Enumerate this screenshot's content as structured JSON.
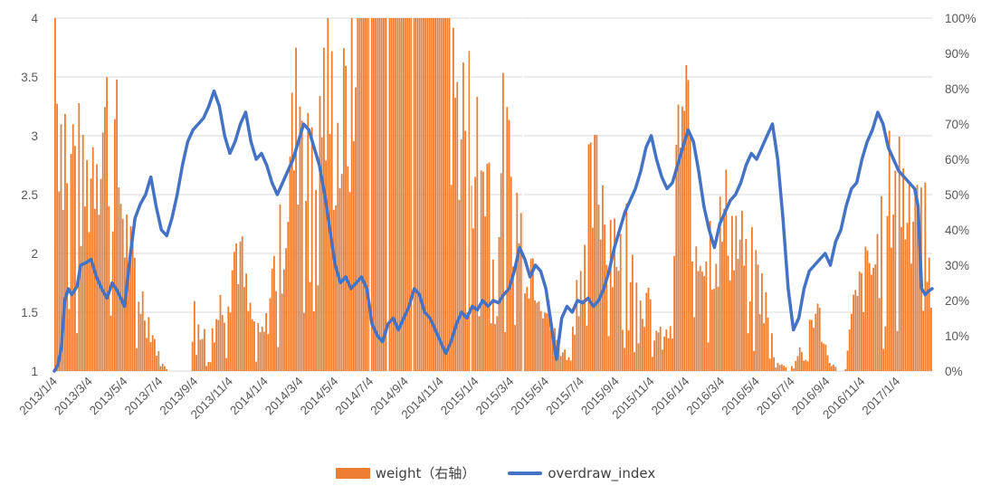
{
  "chart_data": {
    "type": "bar+line",
    "title": "",
    "colors": {
      "weight": "#ed7d31",
      "overdraw": "#4472c4",
      "grid": "#d9d9d9",
      "text": "#595959"
    },
    "left_axis": {
      "ylim": [
        1,
        4
      ],
      "ticks": [
        "1",
        "1.5",
        "2",
        "2.5",
        "3",
        "3.5",
        "4"
      ]
    },
    "right_axis": {
      "ylim": [
        0,
        100
      ],
      "ticks": [
        "0%",
        "10%",
        "20%",
        "30%",
        "40%",
        "50%",
        "60%",
        "70%",
        "80%",
        "90%",
        "100%"
      ]
    },
    "x_labels": [
      "2013/1/4",
      "2013/3/4",
      "2013/5/4",
      "2013/7/4",
      "2013/9/4",
      "2013/11/4",
      "2014/1/4",
      "2014/3/4",
      "2014/5/4",
      "2014/7/4",
      "2014/9/4",
      "2014/11/4",
      "2015/1/4",
      "2015/3/4",
      "2015/5/4",
      "2015/7/4",
      "2015/9/4",
      "2015/11/4",
      "2016/1/4",
      "2016/3/4",
      "2016/5/4",
      "2016/7/4",
      "2016/9/4",
      "2016/11/4",
      "2017/1/4"
    ],
    "x_range_months": [
      0,
      50
    ],
    "legend": {
      "weight": "weight（右轴）",
      "overdraw": "overdraw_index"
    },
    "weight_envelope_pct": [
      [
        0.0,
        100
      ],
      [
        0.3,
        96
      ],
      [
        0.8,
        80
      ],
      [
        1.2,
        78
      ],
      [
        1.6,
        62
      ],
      [
        2.0,
        72
      ],
      [
        2.3,
        85
      ],
      [
        2.6,
        90
      ],
      [
        3.0,
        88
      ],
      [
        3.5,
        78
      ],
      [
        4.0,
        50
      ],
      [
        4.5,
        35
      ],
      [
        5.0,
        25
      ],
      [
        5.5,
        15
      ],
      [
        6.0,
        3
      ],
      [
        6.5,
        0
      ],
      [
        7.0,
        0
      ],
      [
        7.7,
        0
      ],
      [
        8.0,
        25
      ],
      [
        8.6,
        10
      ],
      [
        9.2,
        20
      ],
      [
        9.8,
        30
      ],
      [
        10.4,
        48
      ],
      [
        11.0,
        22
      ],
      [
        11.6,
        12
      ],
      [
        12.0,
        15
      ],
      [
        12.4,
        35
      ],
      [
        13.0,
        48
      ],
      [
        13.5,
        80
      ],
      [
        14.0,
        100
      ],
      [
        14.8,
        96
      ],
      [
        15.5,
        100
      ],
      [
        16.2,
        82
      ],
      [
        16.8,
        95
      ],
      [
        17.2,
        100
      ],
      [
        19.5,
        100
      ],
      [
        19.9,
        100
      ],
      [
        21.0,
        100
      ],
      [
        22.5,
        100
      ],
      [
        23.0,
        96
      ],
      [
        23.5,
        90
      ],
      [
        24.0,
        80
      ],
      [
        24.5,
        72
      ],
      [
        25.0,
        70
      ],
      [
        25.6,
        80
      ],
      [
        26.0,
        66
      ],
      [
        26.6,
        52
      ],
      [
        27.0,
        42
      ],
      [
        27.5,
        38
      ],
      [
        28.0,
        22
      ],
      [
        28.6,
        10
      ],
      [
        29.2,
        5
      ],
      [
        29.8,
        32
      ],
      [
        30.4,
        60
      ],
      [
        31.0,
        68
      ],
      [
        31.6,
        55
      ],
      [
        32.2,
        45
      ],
      [
        32.8,
        55
      ],
      [
        33.4,
        30
      ],
      [
        34.0,
        18
      ],
      [
        34.6,
        10
      ],
      [
        35.0,
        14
      ],
      [
        35.6,
        94
      ],
      [
        36.0,
        88
      ],
      [
        36.6,
        40
      ],
      [
        37.0,
        50
      ],
      [
        37.6,
        45
      ],
      [
        38.2,
        55
      ],
      [
        38.8,
        48
      ],
      [
        39.4,
        40
      ],
      [
        40.0,
        35
      ],
      [
        40.6,
        20
      ],
      [
        41.0,
        5
      ],
      [
        41.8,
        0
      ],
      [
        42.6,
        10
      ],
      [
        43.2,
        22
      ],
      [
        43.6,
        18
      ],
      [
        44.0,
        5
      ],
      [
        44.6,
        0
      ],
      [
        45.0,
        0
      ],
      [
        45.4,
        20
      ],
      [
        46.0,
        32
      ],
      [
        46.6,
        38
      ],
      [
        47.2,
        48
      ],
      [
        47.6,
        68
      ],
      [
        48.0,
        72
      ],
      [
        48.5,
        60
      ],
      [
        49.0,
        70
      ],
      [
        49.4,
        68
      ],
      [
        49.7,
        50
      ],
      [
        50.0,
        0
      ]
    ],
    "overdraw_values": [
      [
        0.0,
        1.0
      ],
      [
        0.2,
        1.05
      ],
      [
        0.4,
        1.2
      ],
      [
        0.6,
        1.6
      ],
      [
        0.8,
        1.7
      ],
      [
        1.0,
        1.65
      ],
      [
        1.3,
        1.72
      ],
      [
        1.5,
        1.9
      ],
      [
        1.8,
        1.92
      ],
      [
        2.1,
        1.95
      ],
      [
        2.4,
        1.8
      ],
      [
        2.7,
        1.7
      ],
      [
        3.0,
        1.62
      ],
      [
        3.3,
        1.75
      ],
      [
        3.6,
        1.68
      ],
      [
        4.0,
        1.55
      ],
      [
        4.3,
        1.95
      ],
      [
        4.6,
        2.3
      ],
      [
        4.9,
        2.42
      ],
      [
        5.2,
        2.5
      ],
      [
        5.5,
        2.65
      ],
      [
        5.8,
        2.4
      ],
      [
        6.1,
        2.2
      ],
      [
        6.4,
        2.15
      ],
      [
        6.7,
        2.3
      ],
      [
        7.0,
        2.5
      ],
      [
        7.3,
        2.75
      ],
      [
        7.6,
        2.95
      ],
      [
        7.9,
        3.05
      ],
      [
        8.2,
        3.1
      ],
      [
        8.5,
        3.15
      ],
      [
        8.8,
        3.25
      ],
      [
        9.1,
        3.38
      ],
      [
        9.4,
        3.25
      ],
      [
        9.7,
        3.0
      ],
      [
        10.0,
        2.85
      ],
      [
        10.3,
        2.95
      ],
      [
        10.6,
        3.1
      ],
      [
        10.9,
        3.2
      ],
      [
        11.2,
        2.95
      ],
      [
        11.5,
        2.8
      ],
      [
        11.8,
        2.85
      ],
      [
        12.1,
        2.75
      ],
      [
        12.4,
        2.6
      ],
      [
        12.7,
        2.5
      ],
      [
        13.0,
        2.6
      ],
      [
        13.3,
        2.7
      ],
      [
        13.6,
        2.8
      ],
      [
        13.9,
        2.95
      ],
      [
        14.2,
        3.1
      ],
      [
        14.5,
        3.05
      ],
      [
        14.8,
        2.9
      ],
      [
        15.1,
        2.75
      ],
      [
        15.4,
        2.5
      ],
      [
        15.7,
        2.2
      ],
      [
        16.0,
        1.9
      ],
      [
        16.3,
        1.75
      ],
      [
        16.6,
        1.8
      ],
      [
        16.9,
        1.7
      ],
      [
        17.2,
        1.75
      ],
      [
        17.5,
        1.8
      ],
      [
        17.8,
        1.7
      ],
      [
        18.1,
        1.4
      ],
      [
        18.4,
        1.3
      ],
      [
        18.7,
        1.25
      ],
      [
        19.0,
        1.4
      ],
      [
        19.3,
        1.45
      ],
      [
        19.6,
        1.35
      ],
      [
        19.9,
        1.45
      ],
      [
        20.2,
        1.55
      ],
      [
        20.5,
        1.7
      ],
      [
        20.8,
        1.65
      ],
      [
        21.1,
        1.5
      ],
      [
        21.4,
        1.45
      ],
      [
        21.7,
        1.35
      ],
      [
        22.0,
        1.25
      ],
      [
        22.3,
        1.15
      ],
      [
        22.6,
        1.25
      ],
      [
        22.9,
        1.4
      ],
      [
        23.2,
        1.5
      ],
      [
        23.5,
        1.45
      ],
      [
        23.8,
        1.55
      ],
      [
        24.1,
        1.52
      ],
      [
        24.4,
        1.6
      ],
      [
        24.7,
        1.55
      ],
      [
        25.0,
        1.6
      ],
      [
        25.3,
        1.58
      ],
      [
        25.6,
        1.65
      ],
      [
        25.9,
        1.7
      ],
      [
        26.2,
        1.85
      ],
      [
        26.5,
        2.05
      ],
      [
        26.8,
        1.95
      ],
      [
        27.1,
        1.8
      ],
      [
        27.4,
        1.9
      ],
      [
        27.7,
        1.85
      ],
      [
        28.0,
        1.7
      ],
      [
        28.3,
        1.4
      ],
      [
        28.6,
        1.1
      ],
      [
        28.9,
        1.45
      ],
      [
        29.2,
        1.55
      ],
      [
        29.5,
        1.5
      ],
      [
        29.8,
        1.6
      ],
      [
        30.1,
        1.58
      ],
      [
        30.4,
        1.62
      ],
      [
        30.7,
        1.55
      ],
      [
        31.0,
        1.6
      ],
      [
        31.3,
        1.7
      ],
      [
        31.6,
        1.85
      ],
      [
        31.9,
        2.05
      ],
      [
        32.2,
        2.2
      ],
      [
        32.5,
        2.35
      ],
      [
        32.8,
        2.45
      ],
      [
        33.1,
        2.55
      ],
      [
        33.4,
        2.7
      ],
      [
        33.7,
        2.9
      ],
      [
        34.0,
        3.0
      ],
      [
        34.3,
        2.8
      ],
      [
        34.6,
        2.65
      ],
      [
        34.9,
        2.55
      ],
      [
        35.2,
        2.6
      ],
      [
        35.5,
        2.75
      ],
      [
        35.8,
        2.9
      ],
      [
        36.1,
        3.05
      ],
      [
        36.4,
        2.95
      ],
      [
        36.7,
        2.7
      ],
      [
        37.0,
        2.4
      ],
      [
        37.3,
        2.2
      ],
      [
        37.6,
        2.05
      ],
      [
        37.9,
        2.25
      ],
      [
        38.2,
        2.35
      ],
      [
        38.5,
        2.45
      ],
      [
        38.8,
        2.5
      ],
      [
        39.1,
        2.6
      ],
      [
        39.4,
        2.75
      ],
      [
        39.7,
        2.85
      ],
      [
        40.0,
        2.8
      ],
      [
        40.3,
        2.9
      ],
      [
        40.6,
        3.0
      ],
      [
        40.9,
        3.1
      ],
      [
        41.2,
        2.8
      ],
      [
        41.5,
        2.3
      ],
      [
        41.8,
        1.7
      ],
      [
        42.1,
        1.35
      ],
      [
        42.4,
        1.45
      ],
      [
        42.7,
        1.7
      ],
      [
        43.0,
        1.85
      ],
      [
        43.3,
        1.9
      ],
      [
        43.6,
        1.95
      ],
      [
        43.9,
        2.0
      ],
      [
        44.2,
        1.9
      ],
      [
        44.5,
        2.1
      ],
      [
        44.8,
        2.2
      ],
      [
        45.1,
        2.4
      ],
      [
        45.4,
        2.55
      ],
      [
        45.7,
        2.6
      ],
      [
        46.0,
        2.8
      ],
      [
        46.3,
        2.95
      ],
      [
        46.6,
        3.05
      ],
      [
        46.9,
        3.2
      ],
      [
        47.2,
        3.1
      ],
      [
        47.5,
        2.9
      ],
      [
        47.8,
        2.8
      ],
      [
        48.1,
        2.7
      ],
      [
        48.4,
        2.65
      ],
      [
        48.7,
        2.6
      ],
      [
        49.0,
        2.55
      ],
      [
        49.2,
        2.4
      ],
      [
        49.4,
        1.7
      ],
      [
        49.6,
        1.65
      ],
      [
        49.8,
        1.68
      ],
      [
        50.0,
        1.7
      ]
    ]
  }
}
